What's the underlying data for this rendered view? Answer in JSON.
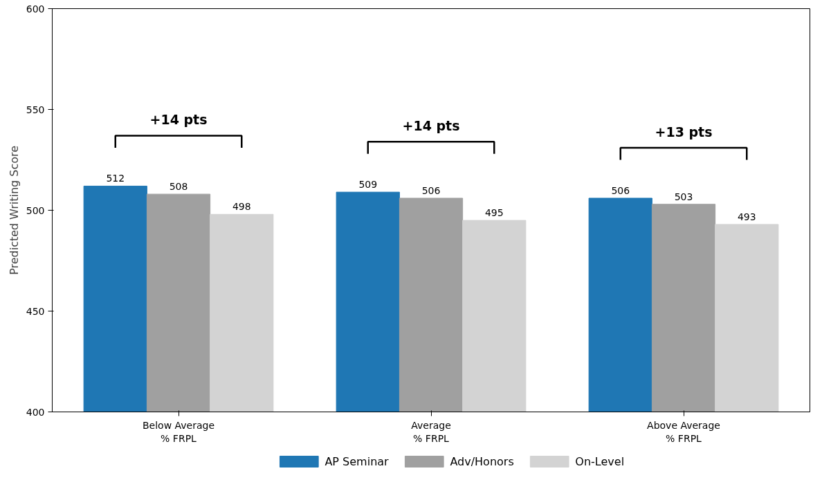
{
  "chart_data": {
    "type": "bar",
    "ylabel": "Predicted Writing Score",
    "categories": [
      "Below Average\n% FRPL",
      "Average\n% FRPL",
      "Above Average\n% FRPL"
    ],
    "series": [
      {
        "name": "AP Seminar",
        "color": "#1f77b4",
        "values": [
          512,
          509,
          506
        ]
      },
      {
        "name": "Adv/Honors",
        "color": "#a0a0a0",
        "values": [
          508,
          506,
          503
        ]
      },
      {
        "name": "On-Level",
        "color": "#d3d3d3",
        "values": [
          498,
          495,
          493
        ]
      }
    ],
    "ylim": [
      400,
      600
    ],
    "yticks": [
      400,
      450,
      500,
      550,
      600
    ],
    "grid": false,
    "legend": "bottom",
    "data_labels": true,
    "annotations": [
      "+14 pts",
      "+14 pts",
      "+13 pts"
    ]
  }
}
